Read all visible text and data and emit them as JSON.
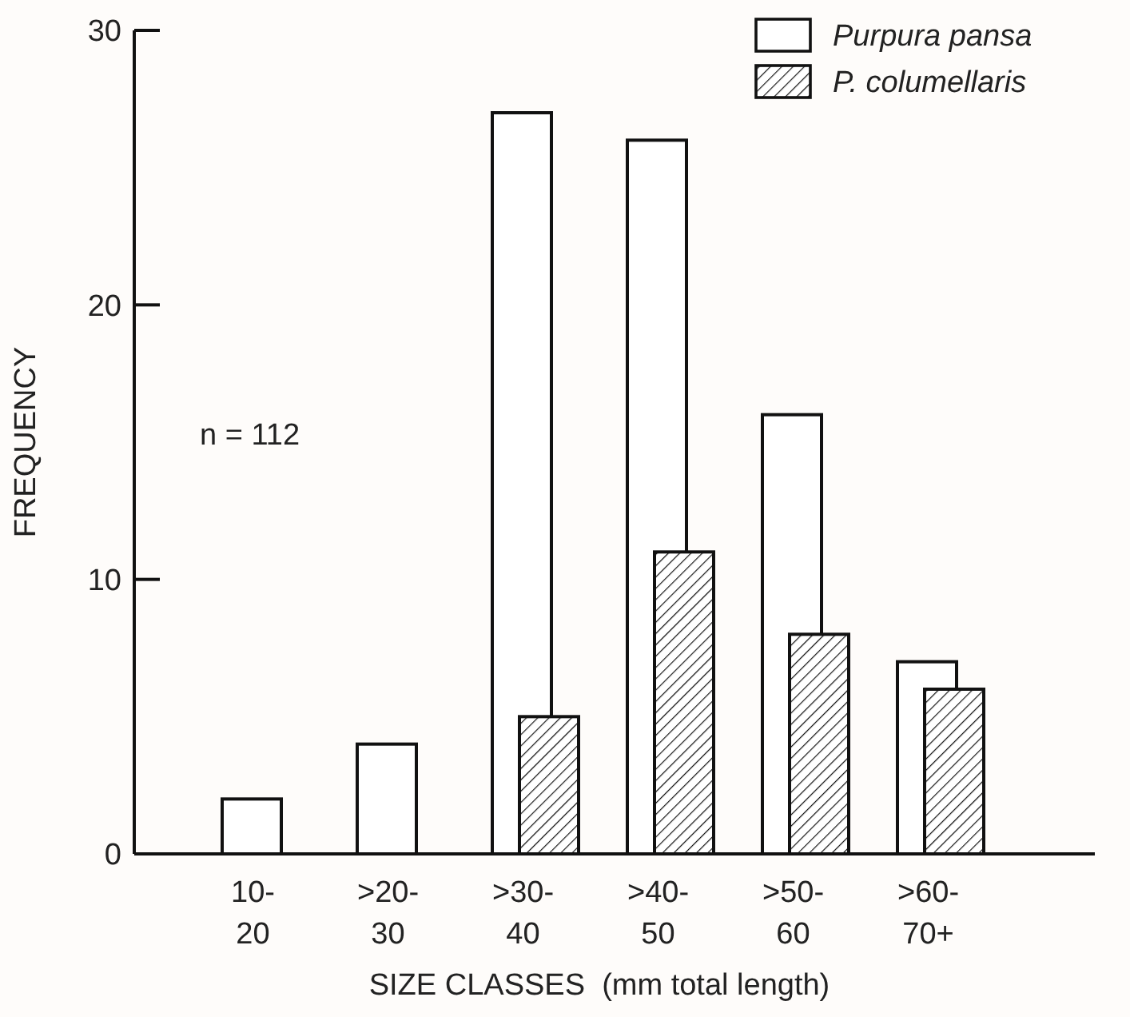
{
  "chart_data": {
    "type": "bar",
    "categories": [
      "10-\n20",
      ">20-\n30",
      ">30-\n40",
      ">40-\n50",
      ">50-\n60",
      ">60-\n70+"
    ],
    "series": [
      {
        "name": "Purpura pansa",
        "color": "#ffffff",
        "values": [
          2,
          4,
          27,
          26,
          16,
          7
        ]
      },
      {
        "name": "P. columellaris",
        "color": "#111111",
        "values": [
          null,
          null,
          5,
          11,
          8,
          6
        ]
      }
    ],
    "xlabel": "SIZE CLASSES  (mm total length)",
    "ylabel": "FREQUENCY",
    "ylim": [
      0,
      30
    ],
    "yticks": [
      0,
      10,
      20,
      30
    ],
    "annotations": [
      "n = 112"
    ],
    "legend": "top right",
    "grid": false
  }
}
